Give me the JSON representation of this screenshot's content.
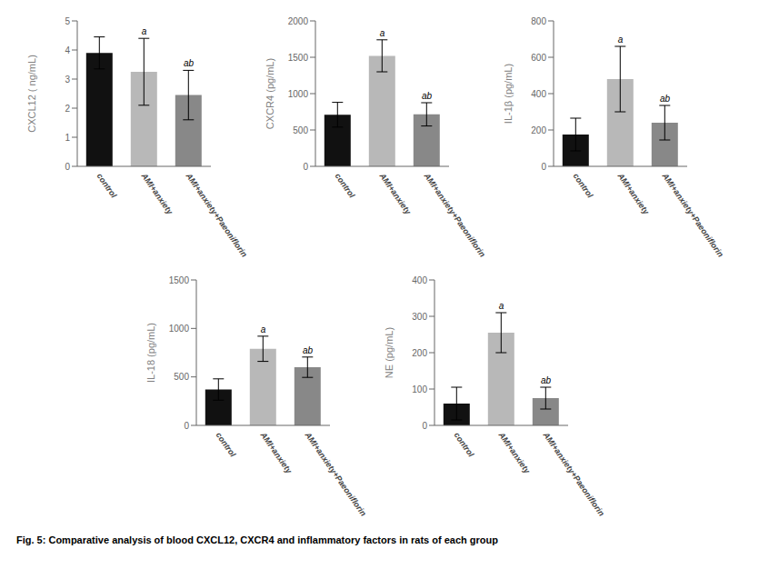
{
  "title": "Fig. 5: Comparative analysis of blood CXCL12, CXCR4 and inflammatory factors in rats of each group",
  "chart_data": [
    {
      "type": "bar",
      "ylabel": "CXCL12 ( ng/mL)",
      "categories": [
        "control",
        "AMI+anxiety",
        "AMI+anxiety+Paeoniflorin"
      ],
      "values": [
        3.9,
        3.25,
        2.45
      ],
      "errors": [
        0.55,
        1.15,
        0.85
      ],
      "annotations": [
        null,
        "a",
        "ab"
      ],
      "colors": [
        "#111111",
        "#b8b8b8",
        "#888888"
      ],
      "ylim": [
        0,
        5
      ],
      "yticks": [
        0,
        1,
        2,
        3,
        4,
        5
      ],
      "grid": false
    },
    {
      "type": "bar",
      "ylabel": "CXCR4 (pg/mL)",
      "categories": [
        "control",
        "AMI+anxiety",
        "AMI+anxiety+Paeoniflorin"
      ],
      "values": [
        710,
        1520,
        715
      ],
      "errors": [
        170,
        220,
        160
      ],
      "annotations": [
        null,
        "a",
        "ab"
      ],
      "colors": [
        "#111111",
        "#b8b8b8",
        "#888888"
      ],
      "ylim": [
        0,
        2000
      ],
      "yticks": [
        0,
        500,
        1000,
        1500,
        2000
      ],
      "grid": false
    },
    {
      "type": "bar",
      "ylabel": "IL-1β (pg/mL)",
      "categories": [
        "control",
        "AMI+anxiety",
        "AMI+anxiety+Paeoniflorin"
      ],
      "values": [
        175,
        480,
        240
      ],
      "errors": [
        90,
        180,
        95
      ],
      "annotations": [
        null,
        "a",
        "ab"
      ],
      "colors": [
        "#111111",
        "#b8b8b8",
        "#888888"
      ],
      "ylim": [
        0,
        800
      ],
      "yticks": [
        0,
        200,
        400,
        600,
        800
      ],
      "grid": false
    },
    {
      "type": "bar",
      "ylabel": "IL-18 (pg/mL)",
      "categories": [
        "control",
        "AMI+anxiety",
        "AMI+anxiety+Paeoniflorin"
      ],
      "values": [
        370,
        790,
        600
      ],
      "errors": [
        110,
        130,
        105
      ],
      "annotations": [
        null,
        "a",
        "ab"
      ],
      "colors": [
        "#111111",
        "#b8b8b8",
        "#888888"
      ],
      "ylim": [
        0,
        1500
      ],
      "yticks": [
        0,
        500,
        1000,
        1500
      ],
      "grid": false
    },
    {
      "type": "bar",
      "ylabel": "NE (pg/mL)",
      "categories": [
        "control",
        "AMI+anxiety",
        "AMI+anxiety+Paeoniflorin"
      ],
      "values": [
        60,
        255,
        75
      ],
      "errors": [
        45,
        55,
        30
      ],
      "annotations": [
        null,
        "a",
        "ab"
      ],
      "colors": [
        "#111111",
        "#b8b8b8",
        "#888888"
      ],
      "ylim": [
        0,
        400
      ],
      "yticks": [
        0,
        100,
        200,
        300,
        400
      ],
      "grid": false
    }
  ]
}
